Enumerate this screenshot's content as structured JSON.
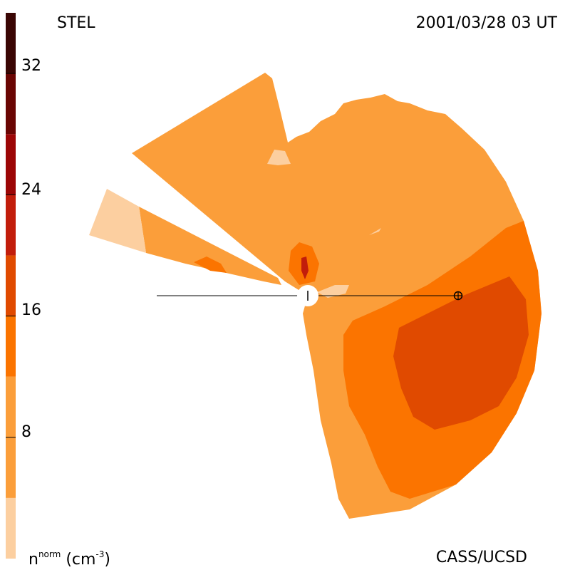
{
  "header": {
    "instrument": "STEL",
    "timestamp": "2001/03/28 03 UT"
  },
  "footer": {
    "credit": "CASS/UCSD",
    "unit_base": "n",
    "unit_sup": "norm",
    "unit_paren_open": "(cm",
    "unit_exp": "-3",
    "unit_paren_close": ")"
  },
  "colorbar": {
    "tick_labels": [
      "32",
      "24",
      "16",
      "8"
    ],
    "tick_values": [
      32,
      24,
      16,
      8
    ],
    "range": [
      0,
      36
    ],
    "bands": [
      {
        "from": 0,
        "to": 4,
        "color": "#fccfa0"
      },
      {
        "from": 4,
        "to": 12,
        "color": "#fb9e3a"
      },
      {
        "from": 12,
        "to": 16,
        "color": "#fb7400"
      },
      {
        "from": 16,
        "to": 20,
        "color": "#e04a00"
      },
      {
        "from": 20,
        "to": 24,
        "color": "#c21d0b"
      },
      {
        "from": 24,
        "to": 28,
        "color": "#9c0606"
      },
      {
        "from": 28,
        "to": 32,
        "color": "#6a0503"
      },
      {
        "from": 32,
        "to": 36,
        "color": "#3a0604"
      }
    ]
  },
  "colors": {
    "background": "#ffffff",
    "level_lowest": "#fccfa0",
    "level_low": "#fb9e3a",
    "level_mid": "#fb7400",
    "level_high": "#e04a00",
    "level_peak": "#c21d0b",
    "axis_line": "#000000"
  },
  "markers": {
    "sun_icon": "sun-disk-icon",
    "earth_icon": "earth-circle-cross-icon"
  }
}
